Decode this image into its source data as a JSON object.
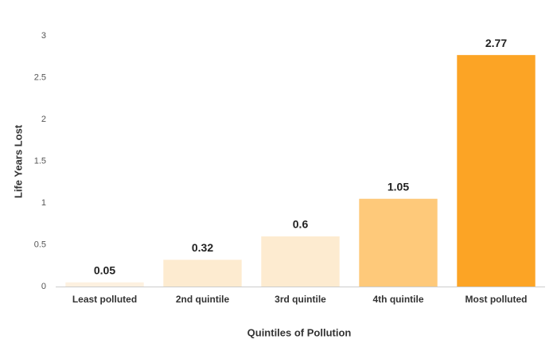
{
  "chart_data": {
    "type": "bar",
    "x_label": "Quintiles of Pollution",
    "y_label": "Life Years Lost",
    "categories": [
      "Least polluted",
      "2nd quintile",
      "3rd quintile",
      "4th quintile",
      "Most polluted"
    ],
    "values": [
      0.05,
      0.32,
      0.6,
      1.05,
      2.77
    ],
    "colors": [
      "#fdf1e0",
      "#fdebd0",
      "#fdebd0",
      "#fec97a",
      "#fca425"
    ],
    "ylim": [
      0,
      3
    ],
    "yticks": [
      0,
      0.5,
      1,
      1.5,
      2,
      2.5,
      3
    ],
    "grid": false
  }
}
